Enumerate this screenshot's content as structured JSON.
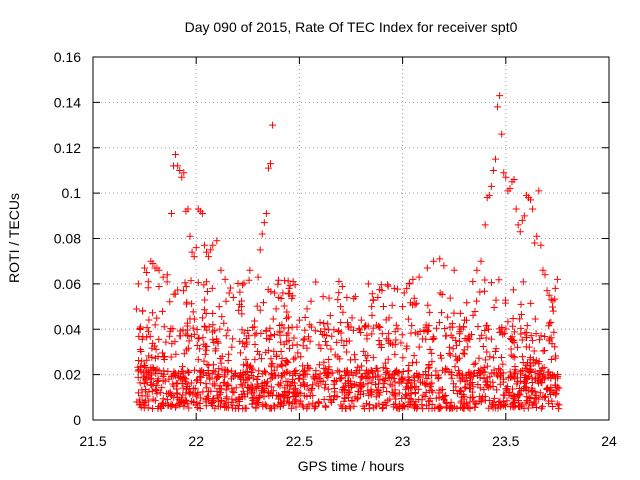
{
  "chart_data": {
    "type": "scatter",
    "title": "Day 090 of 2015, Rate Of TEC Index for receiver spt0",
    "xlabel": "GPS time / hours",
    "ylabel": "ROTI / TECUs",
    "xlim": [
      21.5,
      24
    ],
    "ylim": [
      0,
      0.16
    ],
    "xticks": [
      21.5,
      22,
      22.5,
      23,
      23.5,
      24
    ],
    "xtick_labels": [
      "21.5",
      "22",
      "22.5",
      "23",
      "23.5",
      "24"
    ],
    "yticks": [
      0,
      0.02,
      0.04,
      0.06,
      0.08,
      0.1,
      0.12,
      0.14,
      0.16
    ],
    "ytick_labels": [
      "0",
      "0.02",
      "0.04",
      "0.06",
      "0.08",
      "0.1",
      "0.12",
      "0.14",
      "0.16"
    ],
    "grid": true,
    "marker": "+",
    "color": "#ff0000",
    "series": [
      {
        "name": "ROTI",
        "points": [
          [
            21.72,
            0.06
          ],
          [
            21.73,
            0.041
          ],
          [
            21.74,
            0.048
          ],
          [
            21.75,
            0.067
          ],
          [
            21.76,
            0.065
          ],
          [
            21.78,
            0.07
          ],
          [
            21.79,
            0.069
          ],
          [
            21.8,
            0.067
          ],
          [
            21.81,
            0.067
          ],
          [
            21.82,
            0.066
          ],
          [
            21.84,
            0.063
          ],
          [
            21.86,
            0.064
          ],
          [
            21.88,
            0.091
          ],
          [
            21.89,
            0.112
          ],
          [
            21.9,
            0.117
          ],
          [
            21.91,
            0.112
          ],
          [
            21.92,
            0.11
          ],
          [
            21.93,
            0.107
          ],
          [
            21.94,
            0.109
          ],
          [
            21.95,
            0.092
          ],
          [
            21.96,
            0.093
          ],
          [
            21.97,
            0.081
          ],
          [
            21.98,
            0.074
          ],
          [
            21.99,
            0.072
          ],
          [
            22.0,
            0.076
          ],
          [
            22.01,
            0.093
          ],
          [
            22.02,
            0.092
          ],
          [
            22.03,
            0.091
          ],
          [
            22.04,
            0.077
          ],
          [
            22.05,
            0.074
          ],
          [
            22.06,
            0.072
          ],
          [
            22.07,
            0.075
          ],
          [
            22.08,
            0.077
          ],
          [
            22.1,
            0.079
          ],
          [
            22.12,
            0.066
          ],
          [
            22.14,
            0.062
          ],
          [
            22.16,
            0.056
          ],
          [
            22.18,
            0.054
          ],
          [
            22.22,
            0.05
          ],
          [
            22.26,
            0.066
          ],
          [
            22.3,
            0.063
          ],
          [
            22.31,
            0.075
          ],
          [
            22.32,
            0.082
          ],
          [
            22.33,
            0.087
          ],
          [
            22.34,
            0.091
          ],
          [
            22.35,
            0.111
          ],
          [
            22.36,
            0.113
          ],
          [
            22.37,
            0.13
          ],
          [
            22.38,
            0.056
          ],
          [
            22.4,
            0.054
          ],
          [
            22.42,
            0.056
          ],
          [
            22.45,
            0.058
          ],
          [
            22.47,
            0.061
          ],
          [
            22.5,
            0.044
          ],
          [
            22.55,
            0.042
          ],
          [
            22.6,
            0.043
          ],
          [
            22.65,
            0.046
          ],
          [
            22.7,
            0.043
          ],
          [
            22.75,
            0.041
          ],
          [
            22.8,
            0.044
          ],
          [
            22.85,
            0.05
          ],
          [
            22.88,
            0.054
          ],
          [
            22.9,
            0.057
          ],
          [
            22.93,
            0.059
          ],
          [
            22.96,
            0.058
          ],
          [
            23.0,
            0.05
          ],
          [
            23.02,
            0.058
          ],
          [
            23.05,
            0.062
          ],
          [
            23.08,
            0.063
          ],
          [
            23.12,
            0.067
          ],
          [
            23.15,
            0.07
          ],
          [
            23.18,
            0.071
          ],
          [
            23.2,
            0.068
          ],
          [
            23.25,
            0.066
          ],
          [
            23.28,
            0.047
          ],
          [
            23.3,
            0.044
          ],
          [
            23.34,
            0.061
          ],
          [
            23.36,
            0.066
          ],
          [
            23.38,
            0.07
          ],
          [
            23.4,
            0.086
          ],
          [
            23.41,
            0.098
          ],
          [
            23.42,
            0.099
          ],
          [
            23.43,
            0.103
          ],
          [
            23.44,
            0.11
          ],
          [
            23.45,
            0.115
          ],
          [
            23.46,
            0.138
          ],
          [
            23.47,
            0.143
          ],
          [
            23.48,
            0.126
          ],
          [
            23.49,
            0.109
          ],
          [
            23.5,
            0.107
          ],
          [
            23.51,
            0.101
          ],
          [
            23.52,
            0.102
          ],
          [
            23.53,
            0.105
          ],
          [
            23.54,
            0.106
          ],
          [
            23.55,
            0.093
          ],
          [
            23.56,
            0.086
          ],
          [
            23.57,
            0.083
          ],
          [
            23.58,
            0.088
          ],
          [
            23.59,
            0.09
          ],
          [
            23.6,
            0.099
          ],
          [
            23.61,
            0.098
          ],
          [
            23.62,
            0.097
          ],
          [
            23.63,
            0.093
          ],
          [
            23.64,
            0.078
          ],
          [
            23.65,
            0.081
          ],
          [
            23.66,
            0.101
          ],
          [
            23.67,
            0.077
          ],
          [
            23.68,
            0.066
          ],
          [
            23.69,
            0.064
          ],
          [
            23.7,
            0.057
          ],
          [
            23.71,
            0.055
          ],
          [
            23.72,
            0.053
          ],
          [
            23.73,
            0.048
          ],
          [
            23.74,
            0.058
          ],
          [
            23.75,
            0.062
          ]
        ],
        "bands": [
          {
            "x": [
              21.71,
              23.76
            ],
            "y": [
              0.005,
              0.022
            ],
            "n": 950
          },
          {
            "x": [
              21.71,
              23.76
            ],
            "y": [
              0.018,
              0.042
            ],
            "n": 520
          },
          {
            "x": [
              21.71,
              23.76
            ],
            "y": [
              0.035,
              0.062
            ],
            "n": 230
          }
        ]
      }
    ]
  }
}
